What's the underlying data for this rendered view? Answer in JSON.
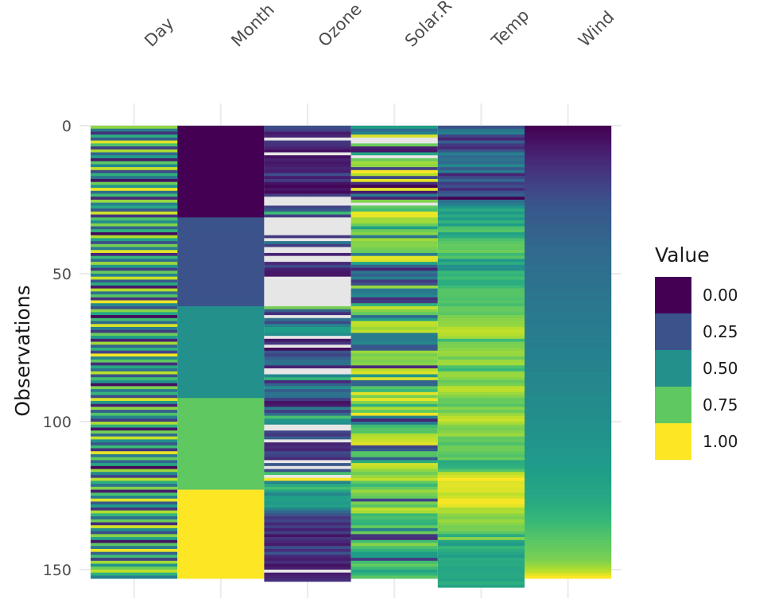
{
  "chart_data": {
    "type": "heatmap",
    "title": "",
    "xlabel": "",
    "ylabel": "Observations",
    "columns": [
      "Day",
      "Month",
      "Ozone",
      "Solar.R",
      "Temp",
      "Wind"
    ],
    "rows": 153,
    "ylim": [
      0,
      153
    ],
    "y_ticks": [
      0,
      50,
      100,
      150
    ],
    "y_tick_labels": [
      "0",
      "50",
      "100",
      "150"
    ],
    "missing_color": "#e6e6e6",
    "colorscale": "viridis",
    "colors": [
      "#440154",
      "#3b528b",
      "#21908c",
      "#5dc863",
      "#fde725"
    ],
    "legend": {
      "title": "Value",
      "position": "right",
      "labels": [
        "0.00",
        "0.25",
        "0.50",
        "0.75",
        "1.00"
      ],
      "values": [
        0.0,
        0.25,
        0.5,
        0.75,
        1.0
      ]
    },
    "series": [
      {
        "name": "Day",
        "values": [
          0.83,
          0.41,
          0.14,
          0.62,
          0.29,
          0.95,
          0.71,
          0.18,
          0.87,
          0.33,
          0.56,
          0.08,
          0.74,
          0.47,
          0.91,
          0.22,
          0.63,
          0.39,
          0.05,
          0.78,
          0.52,
          0.97,
          0.36,
          0.68,
          0.12,
          0.84,
          0.44,
          0.59,
          0.27,
          0.93,
          0.16,
          0.72,
          0.49,
          0.81,
          0.31,
          0.65,
          0.03,
          0.88,
          0.57,
          0.24,
          0.79,
          0.42,
          0.96,
          0.11,
          0.67,
          0.35,
          0.85,
          0.53,
          0.19,
          0.76,
          0.45,
          0.92,
          0.28,
          0.61,
          0.07,
          0.89,
          0.38,
          0.73,
          0.15,
          0.98,
          0.48,
          0.25,
          0.82,
          0.58,
          0.02,
          0.69,
          0.34,
          0.94,
          0.43,
          0.17,
          0.77,
          0.55,
          0.09,
          0.86,
          0.32,
          0.64,
          0.21,
          0.99,
          0.46,
          0.75,
          0.13,
          0.6,
          0.37,
          0.9,
          0.26,
          0.7,
          0.51,
          0.04,
          0.8,
          0.4,
          0.66,
          0.23,
          0.95,
          0.54,
          0.1,
          0.83,
          0.3,
          0.72,
          0.45,
          0.18,
          0.87,
          0.63,
          0.06,
          0.79,
          0.36,
          0.92,
          0.5,
          0.27,
          0.68,
          0.14,
          0.97,
          0.41,
          0.76,
          0.33,
          0.59,
          0.02,
          0.85,
          0.47,
          0.21,
          0.9,
          0.62,
          0.38,
          0.81,
          0.08,
          0.71,
          0.44,
          0.96,
          0.29,
          0.55,
          0.16,
          0.88,
          0.66,
          0.35,
          0.77,
          0.12,
          0.93,
          0.49,
          0.24,
          0.82,
          0.57,
          0.05,
          0.74,
          0.4,
          0.98,
          0.31,
          0.69,
          0.19,
          0.86,
          0.52,
          0.78,
          0.9,
          0.64,
          0.43
        ]
      },
      {
        "name": "Month",
        "values": [
          0.0,
          0.0,
          0.0,
          0.0,
          0.0,
          0.0,
          0.0,
          0.0,
          0.0,
          0.0,
          0.0,
          0.0,
          0.0,
          0.0,
          0.0,
          0.0,
          0.0,
          0.0,
          0.0,
          0.0,
          0.0,
          0.0,
          0.0,
          0.0,
          0.0,
          0.0,
          0.0,
          0.0,
          0.0,
          0.0,
          0.0,
          0.25,
          0.25,
          0.25,
          0.25,
          0.25,
          0.25,
          0.25,
          0.25,
          0.25,
          0.25,
          0.25,
          0.25,
          0.25,
          0.25,
          0.25,
          0.25,
          0.25,
          0.25,
          0.25,
          0.25,
          0.25,
          0.25,
          0.25,
          0.25,
          0.25,
          0.25,
          0.25,
          0.25,
          0.25,
          0.25,
          0.5,
          0.5,
          0.5,
          0.5,
          0.5,
          0.5,
          0.5,
          0.5,
          0.5,
          0.5,
          0.5,
          0.5,
          0.5,
          0.5,
          0.5,
          0.5,
          0.5,
          0.5,
          0.5,
          0.5,
          0.5,
          0.5,
          0.5,
          0.5,
          0.5,
          0.5,
          0.5,
          0.5,
          0.5,
          0.5,
          0.5,
          0.75,
          0.75,
          0.75,
          0.75,
          0.75,
          0.75,
          0.75,
          0.75,
          0.75,
          0.75,
          0.75,
          0.75,
          0.75,
          0.75,
          0.75,
          0.75,
          0.75,
          0.75,
          0.75,
          0.75,
          0.75,
          0.75,
          0.75,
          0.75,
          0.75,
          0.75,
          0.75,
          0.75,
          0.75,
          0.75,
          0.75,
          1.0,
          1.0,
          1.0,
          1.0,
          1.0,
          1.0,
          1.0,
          1.0,
          1.0,
          1.0,
          1.0,
          1.0,
          1.0,
          1.0,
          1.0,
          1.0,
          1.0,
          1.0,
          1.0,
          1.0,
          1.0,
          1.0,
          1.0,
          1.0,
          1.0,
          1.0,
          1.0,
          1.0,
          1.0,
          1.0
        ]
      },
      {
        "name": "Ozone",
        "values": [
          0.24,
          0.2,
          0.07,
          0.1,
          null,
          0.16,
          0.14,
          0.1,
          0.04,
          null,
          0.04,
          0.09,
          0.06,
          0.08,
          0.1,
          0.08,
          0.24,
          0.08,
          0.18,
          0.05,
          0.01,
          0.06,
          0.02,
          0.18,
          null,
          null,
          null,
          0.2,
          0.27,
          0.68,
          0.18,
          null,
          null,
          null,
          null,
          null,
          null,
          0.17,
          null,
          0.4,
          0.18,
          null,
          null,
          0.1,
          null,
          null,
          0.11,
          0.22,
          0.09,
          0.06,
          0.06,
          null,
          null,
          null,
          null,
          null,
          null,
          null,
          null,
          null,
          null,
          0.79,
          0.3,
          0.13,
          null,
          0.37,
          0.22,
          0.45,
          0.55,
          0.55,
          0.49,
          null,
          0.06,
          0.15,
          null,
          0.03,
          0.26,
          0.2,
          0.3,
          0.36,
          0.37,
          0.09,
          null,
          null,
          0.46,
          0.65,
          0.11,
          0.31,
          0.48,
          0.29,
          0.38,
          0.36,
          0.18,
          0.05,
          0.07,
          0.42,
          0.18,
          0.35,
          0.71,
          0.52,
          0.5,
          null,
          null,
          0.21,
          0.16,
          0.3,
          null,
          0.1,
          0.13,
          0.1,
          0.23,
          0.2,
          0.12,
          null,
          0.27,
          null,
          0.25,
          0.7,
          null,
          0.99,
          0.45,
          0.6,
          0.69,
          0.58,
          0.46,
          0.56,
          0.57,
          0.54,
          0.57,
          0.45,
          0.33,
          0.25,
          0.15,
          0.21,
          0.11,
          0.19,
          0.09,
          0.19,
          0.05,
          0.15,
          0.11,
          0.07,
          0.24,
          0.13,
          0.26,
          0.11,
          0.08,
          0.13,
          0.05,
          0.08,
          null,
          0.08,
          0.1,
          0.13
        ]
      },
      {
        "name": "Solar.R",
        "values": [
          0.56,
          0.35,
          0.44,
          0.94,
          null,
          null,
          0.77,
          0.08,
          0.06,
          0.59,
          null,
          0.77,
          0.86,
          0.83,
          0.19,
          1.0,
          0.89,
          0.21,
          0.96,
          0.13,
          0.0,
          0.96,
          0.08,
          0.42,
          0.1,
          0.81,
          null,
          0.75,
          0.7,
          0.97,
          0.97,
          0.85,
          0.86,
          0.77,
          0.56,
          0.78,
          0.82,
          0.39,
          0.86,
          0.81,
          0.82,
          0.79,
          0.77,
          0.42,
          0.96,
          0.95,
          0.58,
          0.31,
          0.1,
          0.39,
          0.31,
          0.43,
          0.17,
          0.25,
          0.84,
          0.4,
          0.42,
          0.46,
          0.13,
          0.18,
          0.64,
          0.91,
          0.82,
          0.75,
          0.34,
          0.57,
          0.91,
          0.9,
          0.85,
          0.91,
          0.42,
          0.42,
          0.42,
          0.47,
          0.27,
          0.28,
          0.85,
          0.79,
          0.83,
          0.8,
          0.82,
          0.12,
          0.9,
          0.95,
          0.53,
          0.94,
          0.31,
          0.33,
          0.73,
          0.67,
          0.96,
          0.79,
          0.97,
          0.82,
          0.64,
          0.88,
          0.75,
          0.98,
          0.44,
          0.1,
          0.42,
          0.68,
          0.73,
          0.73,
          0.88,
          0.9,
          0.92,
          0.96,
          0.21,
          0.28,
          0.73,
          0.73,
          0.29,
          0.62,
          0.93,
          0.9,
          0.83,
          0.78,
          0.84,
          0.91,
          0.75,
          0.67,
          0.76,
          0.85,
          0.79,
          0.76,
          0.21,
          0.8,
          0.73,
          0.9,
          0.87,
          0.68,
          0.71,
          0.66,
          0.64,
          0.76,
          0.42,
          0.77,
          0.16,
          0.12,
          0.69,
          0.82,
          0.71,
          0.65,
          0.55,
          0.55,
          0.18,
          0.69,
          0.76,
          0.68,
          0.58,
          0.65,
          0.74
        ]
      },
      {
        "name": "Temp",
        "values": [
          0.25,
          0.38,
          0.43,
          0.2,
          0.1,
          0.3,
          0.17,
          0.12,
          0.27,
          0.43,
          0.34,
          0.38,
          0.34,
          0.47,
          0.28,
          0.42,
          0.1,
          0.22,
          0.33,
          0.18,
          0.24,
          0.12,
          0.26,
          0.3,
          0.0,
          0.36,
          0.43,
          0.52,
          0.61,
          0.53,
          0.61,
          0.53,
          0.65,
          0.55,
          0.71,
          0.73,
          0.57,
          0.61,
          0.71,
          0.74,
          0.76,
          0.75,
          0.78,
          0.68,
          0.73,
          0.54,
          0.62,
          0.5,
          0.5,
          0.67,
          0.65,
          0.69,
          0.62,
          0.62,
          0.68,
          0.73,
          0.73,
          0.73,
          0.71,
          0.73,
          0.7,
          0.76,
          0.76,
          0.74,
          0.8,
          0.82,
          0.83,
          0.84,
          0.89,
          0.91,
          0.89,
          0.86,
          0.68,
          0.79,
          0.8,
          0.82,
          0.85,
          0.84,
          0.77,
          0.85,
          0.86,
          0.71,
          0.67,
          0.84,
          0.85,
          0.81,
          0.76,
          0.8,
          0.9,
          0.9,
          0.85,
          0.81,
          0.76,
          0.77,
          0.73,
          0.82,
          0.77,
          0.84,
          0.9,
          0.92,
          0.87,
          0.81,
          0.79,
          0.82,
          0.85,
          0.75,
          0.76,
          0.71,
          0.78,
          0.78,
          0.75,
          0.72,
          0.77,
          0.61,
          0.62,
          0.64,
          0.73,
          0.9,
          0.94,
          1.0,
          0.95,
          0.96,
          0.95,
          0.95,
          0.9,
          0.93,
          0.99,
          0.99,
          0.96,
          0.87,
          0.88,
          0.83,
          0.8,
          0.85,
          0.82,
          0.79,
          0.8,
          0.74,
          0.61,
          0.82,
          0.58,
          0.54,
          0.67,
          0.62,
          0.59,
          0.55,
          0.62,
          0.6,
          0.61,
          0.59,
          0.59,
          0.6,
          0.6,
          0.58,
          0.63,
          0.58
        ]
      },
      {
        "name": "Wind",
        "values": [
          0.0,
          0.01,
          0.02,
          0.03,
          0.04,
          0.05,
          0.06,
          0.07,
          0.08,
          0.09,
          0.1,
          0.11,
          0.12,
          0.13,
          0.14,
          0.15,
          0.16,
          0.17,
          0.18,
          0.19,
          0.2,
          0.21,
          0.22,
          0.23,
          0.24,
          0.25,
          0.26,
          0.27,
          0.27,
          0.28,
          0.28,
          0.29,
          0.29,
          0.3,
          0.3,
          0.31,
          0.31,
          0.32,
          0.32,
          0.33,
          0.33,
          0.34,
          0.34,
          0.34,
          0.35,
          0.35,
          0.35,
          0.36,
          0.36,
          0.36,
          0.37,
          0.37,
          0.37,
          0.38,
          0.38,
          0.38,
          0.39,
          0.39,
          0.39,
          0.4,
          0.4,
          0.4,
          0.4,
          0.41,
          0.41,
          0.41,
          0.41,
          0.42,
          0.42,
          0.42,
          0.42,
          0.43,
          0.43,
          0.43,
          0.43,
          0.44,
          0.44,
          0.44,
          0.44,
          0.45,
          0.45,
          0.45,
          0.45,
          0.46,
          0.46,
          0.46,
          0.46,
          0.47,
          0.47,
          0.47,
          0.47,
          0.48,
          0.48,
          0.48,
          0.48,
          0.49,
          0.49,
          0.49,
          0.49,
          0.5,
          0.5,
          0.5,
          0.5,
          0.51,
          0.51,
          0.51,
          0.52,
          0.52,
          0.52,
          0.53,
          0.53,
          0.53,
          0.54,
          0.54,
          0.54,
          0.55,
          0.55,
          0.56,
          0.56,
          0.57,
          0.57,
          0.58,
          0.58,
          0.59,
          0.59,
          0.6,
          0.6,
          0.61,
          0.62,
          0.63,
          0.64,
          0.65,
          0.66,
          0.67,
          0.68,
          0.69,
          0.7,
          0.71,
          0.72,
          0.73,
          0.74,
          0.75,
          0.76,
          0.77,
          0.78,
          0.79,
          0.8,
          0.82,
          0.84,
          0.87,
          0.9,
          0.95,
          1.0
        ]
      }
    ]
  }
}
